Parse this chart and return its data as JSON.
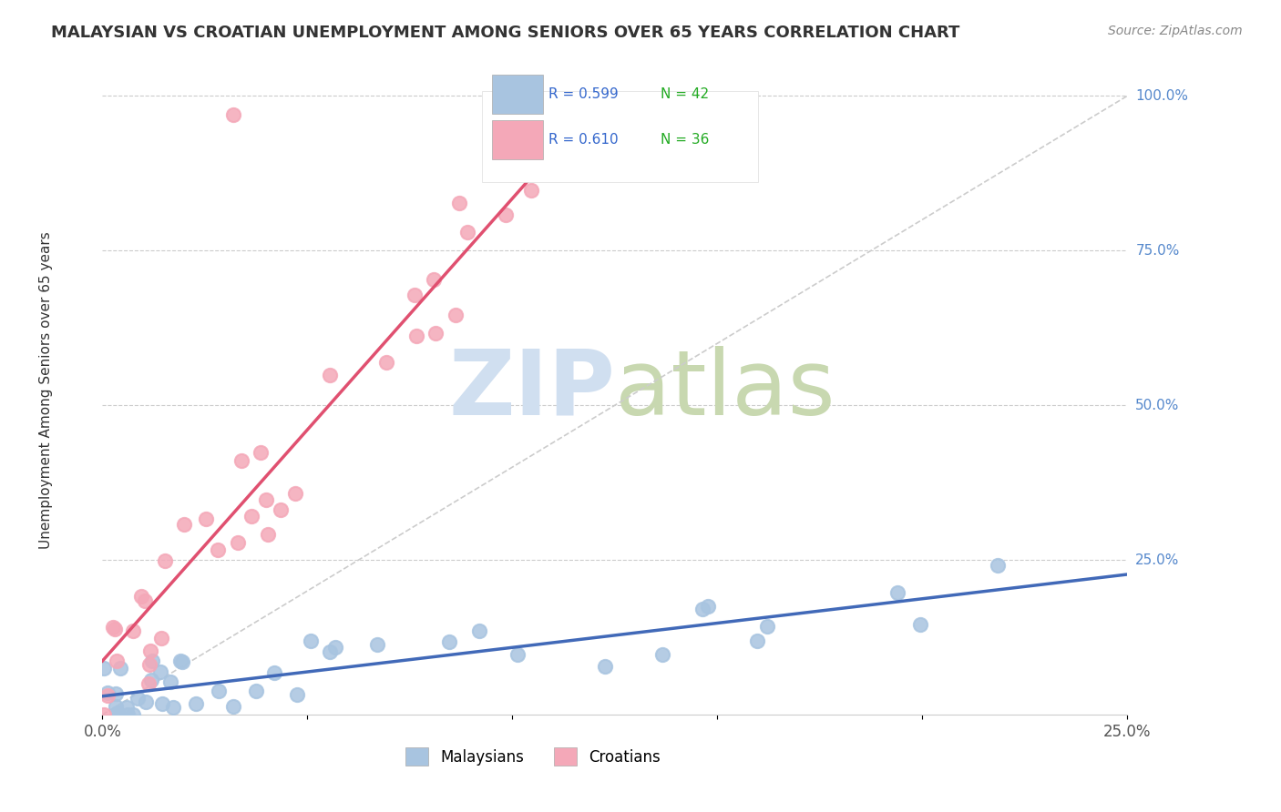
{
  "title": "MALAYSIAN VS CROATIAN UNEMPLOYMENT AMONG SENIORS OVER 65 YEARS CORRELATION CHART",
  "source": "Source: ZipAtlas.com",
  "ylabel": "Unemployment Among Seniors over 65 years",
  "xlim": [
    0.0,
    0.25
  ],
  "ylim": [
    0.0,
    1.05
  ],
  "legend_r_malaysian": "R = 0.599",
  "legend_n_malaysian": "N = 42",
  "legend_r_croatian": "R = 0.610",
  "legend_n_croatian": "N = 36",
  "malaysian_color": "#a8c4e0",
  "croatian_color": "#f4a8b8",
  "malaysian_line_color": "#4169b8",
  "croatian_line_color": "#e05070",
  "diagonal_color": "#cccccc",
  "watermark_zip_color": "#d0dff0",
  "watermark_atlas_color": "#c8d8b0",
  "background_color": "#ffffff",
  "grid_color": "#cccccc",
  "right_tick_color": "#5588cc",
  "title_color": "#333333",
  "source_color": "#888888",
  "ylabel_color": "#333333"
}
